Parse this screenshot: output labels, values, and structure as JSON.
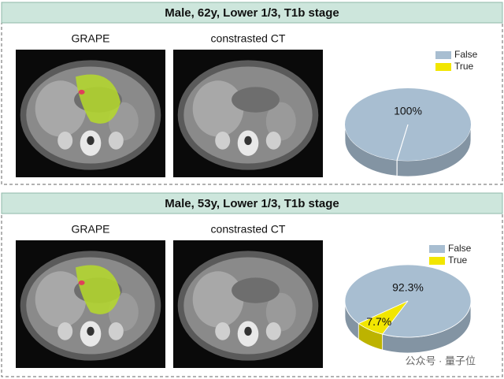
{
  "panels": [
    {
      "title": "Male, 62y, Lower 1/3, T1b stage",
      "image_labels": [
        "GRAPE",
        "constrasted CT"
      ]
    },
    {
      "title": "Male, 53y, Lower 1/3, T1b stage",
      "image_labels": [
        "GRAPE",
        "constrasted CT"
      ]
    }
  ],
  "chart_data": [
    {
      "type": "pie",
      "categories": [
        "False",
        "True"
      ],
      "values": [
        100,
        0
      ],
      "value_labels": [
        "100%",
        null
      ],
      "colors": [
        "#a8bed1",
        "#f2e600"
      ],
      "legend": "top-right"
    },
    {
      "type": "pie",
      "categories": [
        "False",
        "True"
      ],
      "values": [
        92.3,
        7.7
      ],
      "value_labels": [
        "92.3%",
        "7.7%"
      ],
      "colors": [
        "#a8bed1",
        "#f2e600"
      ],
      "legend": "top-right"
    }
  ],
  "watermark": "公众号 · 量子位"
}
